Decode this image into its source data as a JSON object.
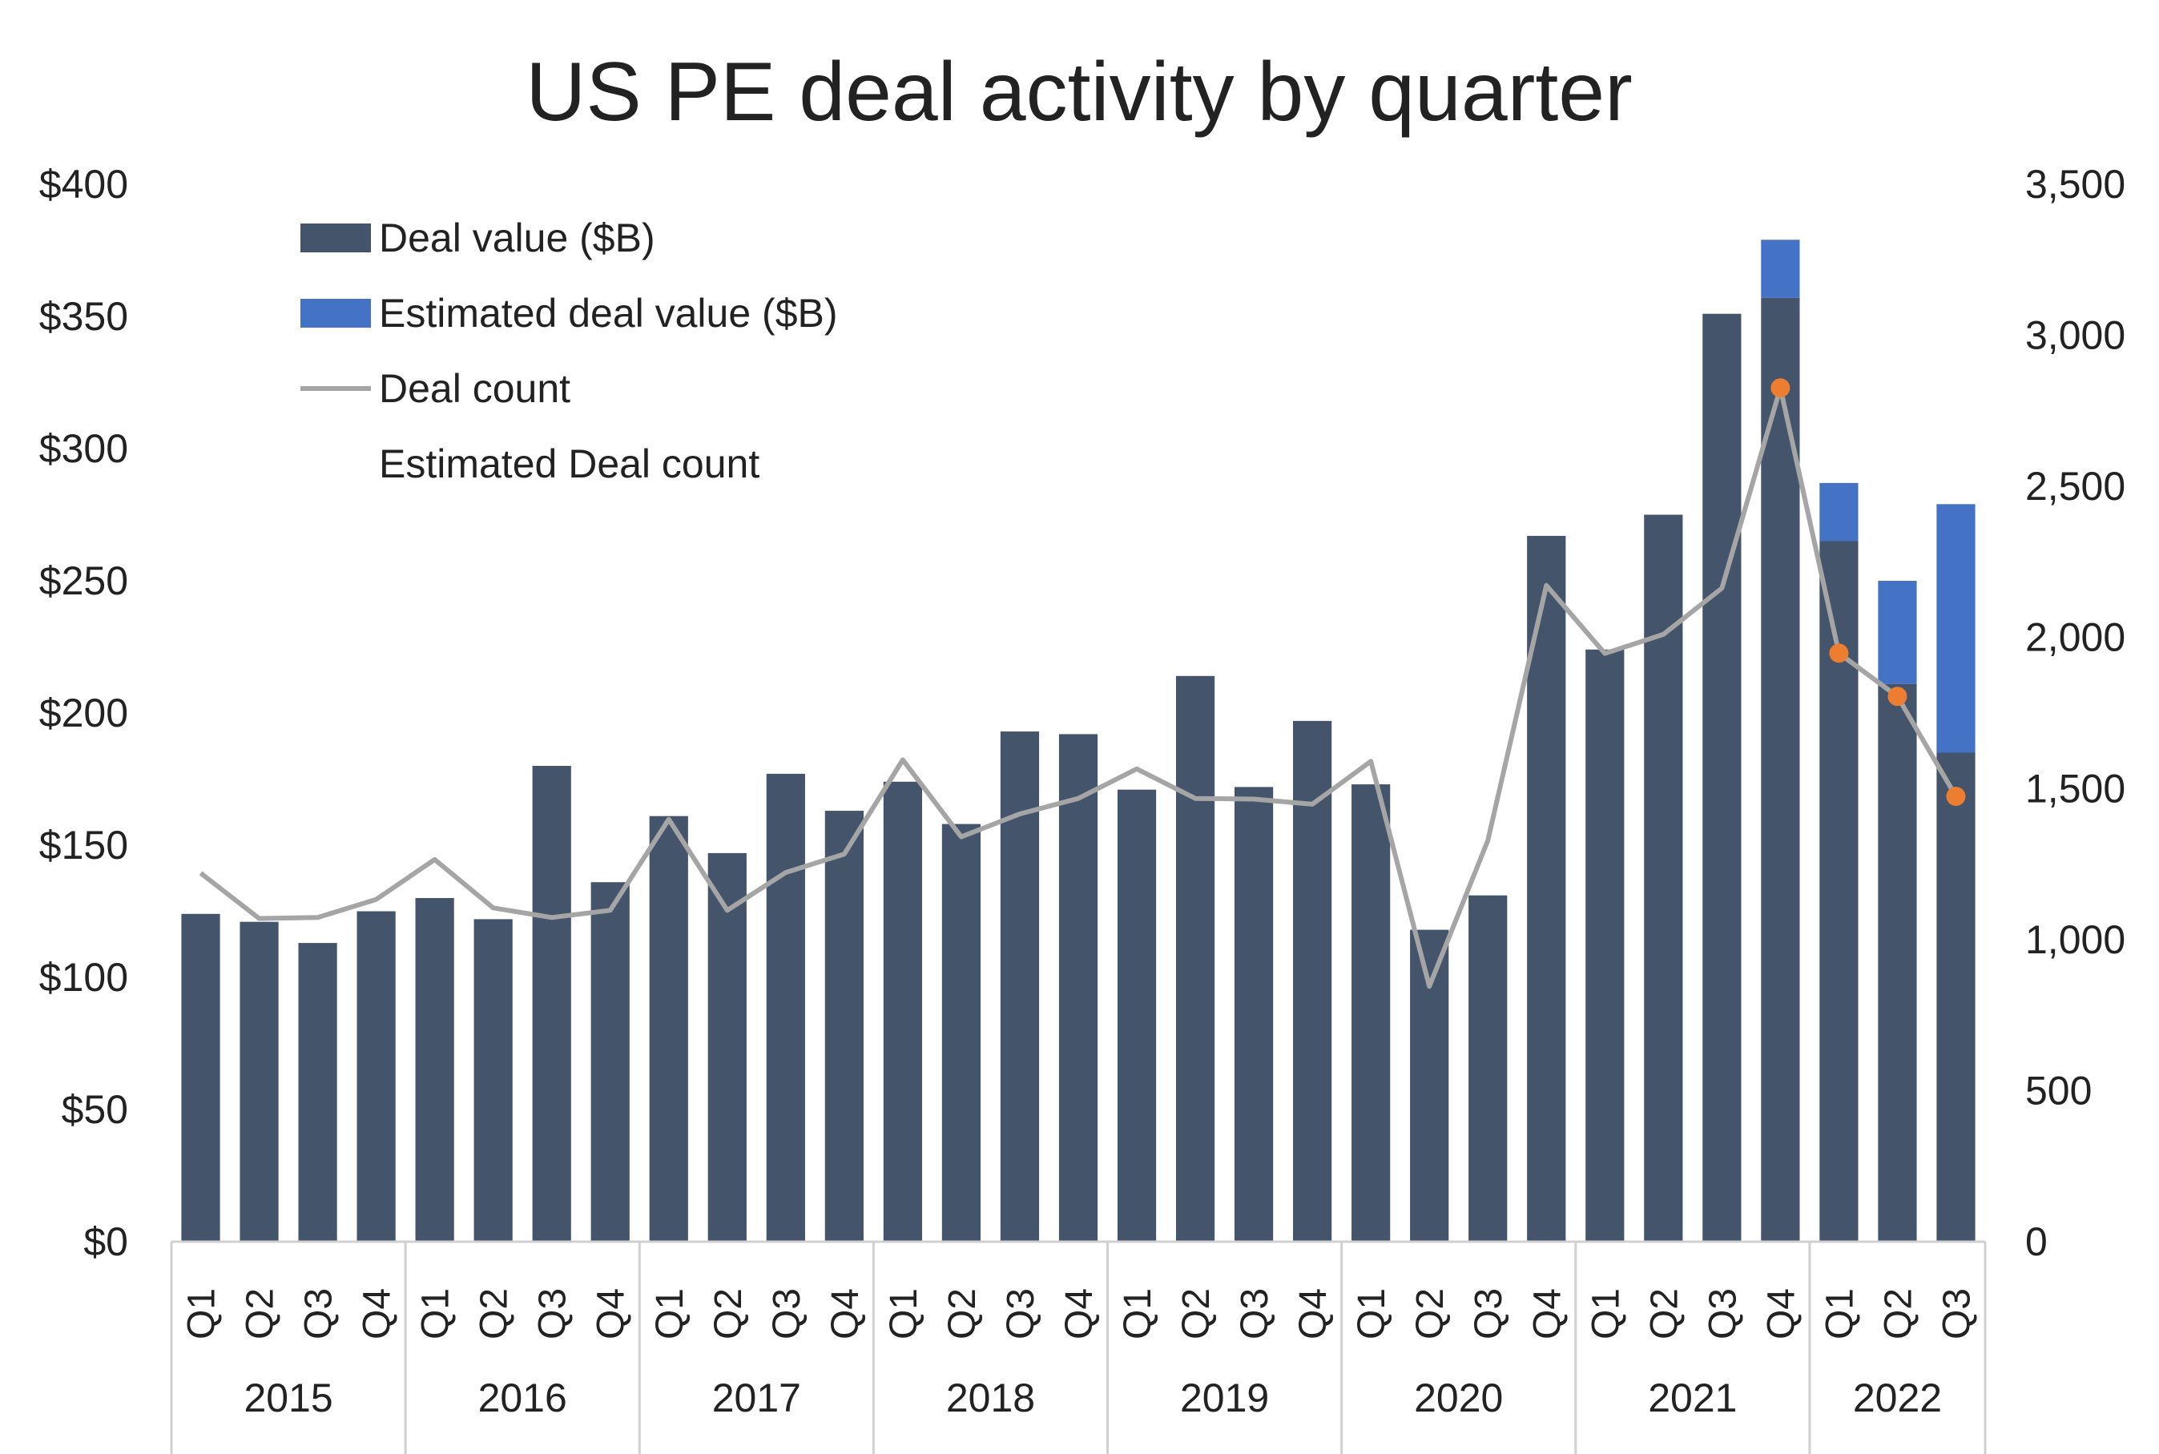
{
  "chart_data": {
    "type": "bar",
    "title": "US PE deal activity by quarter",
    "left_axis": {
      "ylim": [
        0,
        400
      ],
      "ticks": [
        "$0",
        "$50",
        "$100",
        "$150",
        "$200",
        "$250",
        "$300",
        "$350",
        "$400"
      ]
    },
    "right_axis": {
      "ylim": [
        0,
        3500
      ],
      "ticks": [
        "0",
        "500",
        "1,000",
        "1,500",
        "2,000",
        "2,500",
        "3,000",
        "3,500"
      ]
    },
    "grid": false,
    "legend_position": "top-left",
    "quarters": [
      "Q1",
      "Q2",
      "Q3",
      "Q4",
      "Q1",
      "Q2",
      "Q3",
      "Q4",
      "Q1",
      "Q2",
      "Q3",
      "Q4",
      "Q1",
      "Q2",
      "Q3",
      "Q4",
      "Q1",
      "Q2",
      "Q3",
      "Q4",
      "Q1",
      "Q2",
      "Q3",
      "Q4",
      "Q1",
      "Q2",
      "Q3",
      "Q4",
      "Q1",
      "Q2",
      "Q3"
    ],
    "years": [
      "2015",
      "2016",
      "2017",
      "2018",
      "2019",
      "2020",
      "2021",
      "2022"
    ],
    "series": [
      {
        "name": "Deal value ($B)",
        "kind": "bar",
        "color": "#44546A",
        "values": [
          124,
          121,
          113,
          125,
          130,
          122,
          180,
          136,
          161,
          147,
          177,
          163,
          174,
          158,
          193,
          192,
          171,
          214,
          172,
          197,
          173,
          118,
          131,
          267,
          224,
          275,
          351,
          357,
          265,
          211,
          185
        ]
      },
      {
        "name": "Estimated deal value ($B)",
        "kind": "bar-stacked",
        "color": "#4472C4",
        "values": [
          0,
          0,
          0,
          0,
          0,
          0,
          0,
          0,
          0,
          0,
          0,
          0,
          0,
          0,
          0,
          0,
          0,
          0,
          0,
          0,
          0,
          0,
          0,
          0,
          0,
          0,
          0,
          22,
          22,
          39,
          94
        ]
      },
      {
        "name": "Deal count",
        "kind": "line",
        "axis": "right",
        "color": "#A5A5A5",
        "values": [
          1220,
          1070,
          1073,
          1133,
          1265,
          1105,
          1073,
          1097,
          1398,
          1097,
          1222,
          1283,
          1595,
          1340,
          1416,
          1467,
          1565,
          1467,
          1465,
          1448,
          1590,
          845,
          1328,
          2172,
          1947,
          2010,
          2163,
          2826,
          1948,
          1805,
          1474
        ]
      },
      {
        "name": "Estimated Deal count",
        "kind": "markers",
        "axis": "right",
        "color": "#ED7D31",
        "indices": [
          27,
          28,
          29,
          30
        ],
        "values": [
          2826,
          1948,
          1805,
          1474
        ]
      }
    ]
  }
}
